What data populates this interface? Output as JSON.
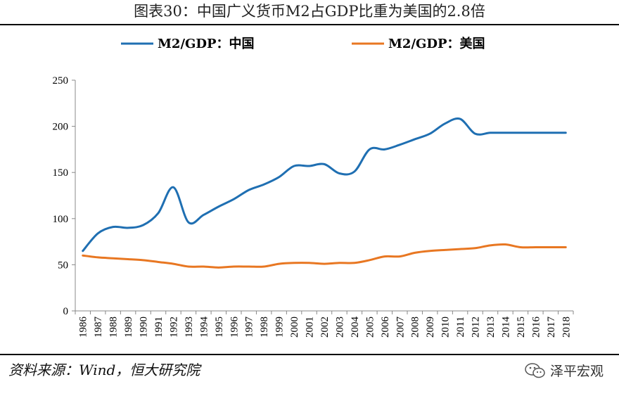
{
  "title": "图表30：中国广义货币M2占GDP比重为美国的2.8倍",
  "source": "资料来源：Wind，恒大研究院",
  "watermark": "泽平宏观",
  "watermark_icon": "wechat-icon",
  "chart_data": {
    "type": "line",
    "title": "图表30：中国广义货币M2占GDP比重为美国的2.8倍",
    "xlabel": "",
    "ylabel": "",
    "ylim": [
      0,
      250
    ],
    "yticks": [
      0,
      50,
      100,
      150,
      200,
      250
    ],
    "grid": false,
    "legend": "top",
    "x": [
      "1986",
      "1987",
      "1988",
      "1989",
      "1990",
      "1991",
      "1992",
      "1993",
      "1994",
      "1995",
      "1996",
      "1997",
      "1998",
      "1999",
      "2000",
      "2001",
      "2002",
      "2003",
      "2004",
      "2005",
      "2006",
      "2007",
      "2008",
      "2009",
      "2010",
      "2011",
      "2012",
      "2013",
      "2014",
      "2015",
      "2016",
      "2017",
      "2018"
    ],
    "series": [
      {
        "name": "M2/GDP：中国",
        "color": "#1f6fb2",
        "values": [
          65,
          84,
          91,
          90,
          93,
          106,
          134,
          96,
          104,
          113,
          121,
          131,
          137,
          145,
          157,
          157,
          159,
          149,
          151,
          175,
          175,
          180,
          186,
          192,
          203,
          208,
          192,
          193,
          193,
          193,
          193,
          193,
          193
        ]
      },
      {
        "name": "M2/GDP：美国",
        "color": "#e87722",
        "values": [
          60,
          58,
          57,
          56,
          55,
          53,
          51,
          48,
          48,
          47,
          48,
          48,
          48,
          51,
          52,
          52,
          51,
          52,
          52,
          55,
          59,
          59,
          63,
          65,
          66,
          67,
          68,
          71,
          72,
          69,
          69,
          69,
          69
        ]
      }
    ]
  }
}
